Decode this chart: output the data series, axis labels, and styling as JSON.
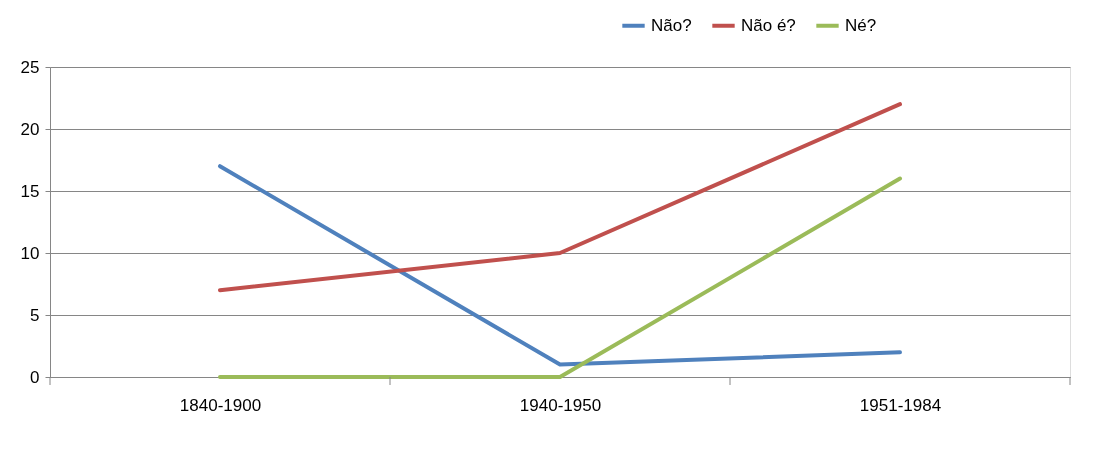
{
  "chart_data": {
    "type": "line",
    "categories": [
      "1840-1900",
      "1940-1950",
      "1951-1984"
    ],
    "series": [
      {
        "name": "Não?",
        "color": "#4f81bd",
        "values": [
          17,
          1,
          2
        ]
      },
      {
        "name": "Não é?",
        "color": "#c0504d",
        "values": [
          7,
          10,
          22
        ]
      },
      {
        "name": "Né?",
        "color": "#9bbb59",
        "values": [
          0,
          0,
          16
        ]
      }
    ],
    "ylim": [
      0,
      25
    ],
    "yticks": [
      0,
      5,
      10,
      15,
      20,
      25
    ],
    "grid": "y",
    "legend": "top right",
    "marker": "none",
    "line_style": "solid"
  }
}
